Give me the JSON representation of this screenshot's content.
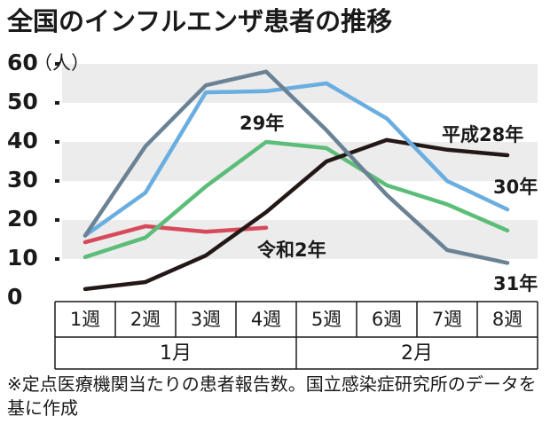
{
  "chart_data": {
    "type": "line",
    "title": "全国のインフルエンザ患者の推移",
    "y_unit": "（人）",
    "categories": [
      "1週",
      "2週",
      "3週",
      "4週",
      "5週",
      "6週",
      "7週",
      "8週"
    ],
    "months": [
      "1月",
      "2月"
    ],
    "series": [
      {
        "name": "平成28年",
        "color": "#231815",
        "values": [
          2.3,
          4.1,
          10.9,
          22,
          35,
          40.5,
          38,
          36.6
        ]
      },
      {
        "name": "29年",
        "color": "#5cbd78",
        "values": [
          10.5,
          15.5,
          28.6,
          40,
          38.4,
          28.9,
          24,
          17.3
        ]
      },
      {
        "name": "30年",
        "color": "#6aaee0",
        "values": [
          16,
          27,
          52.7,
          53,
          55,
          46,
          30,
          22.7
        ]
      },
      {
        "name": "31年",
        "color": "#6b8294",
        "values": [
          16,
          38.9,
          54.5,
          58,
          43,
          26.4,
          12.3,
          9
        ]
      },
      {
        "name": "令和2年",
        "color": "#d64a5a",
        "values": [
          14.3,
          18.4,
          17,
          18,
          null,
          null,
          null,
          null
        ]
      }
    ],
    "ylim": [
      0,
      60
    ],
    "yticks": [
      0,
      10,
      20,
      30,
      40,
      50,
      60
    ],
    "grid": true,
    "footnote": "※定点医療機関当たりの患者報告数。国立感染症研究所のデータを基に作成"
  }
}
